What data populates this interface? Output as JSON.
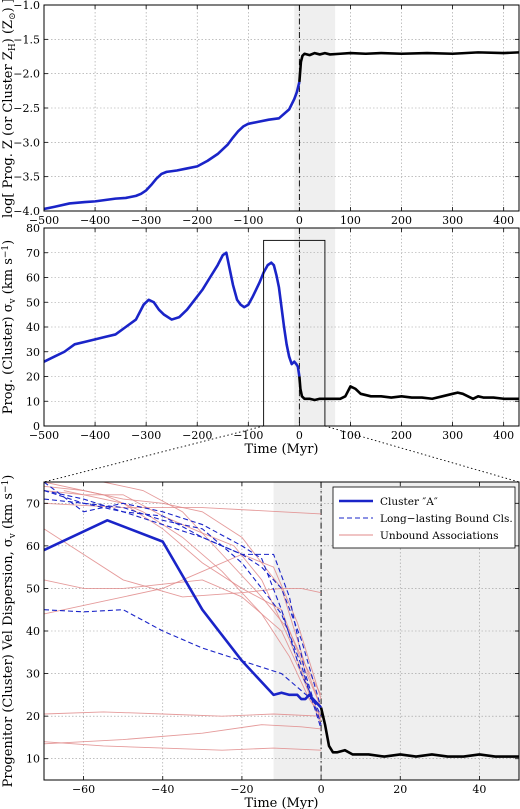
{
  "chart_data": [
    {
      "type": "line",
      "panel": "top",
      "ylabel": "log[ Prog. Z (or Cluster Z",
      "ylabel_sub": "H",
      "ylabel_mid": ") (Z",
      "ylabel_sub2": "⊙",
      "ylabel_end": ") ]",
      "xlim": [
        -500,
        430
      ],
      "ylim": [
        -4.0,
        -1.0
      ],
      "xticks": [
        -500,
        -400,
        -300,
        -200,
        -100,
        0,
        100,
        200,
        300,
        400
      ],
      "yticks": [
        -4.0,
        -3.5,
        -3.0,
        -2.5,
        -2.0,
        -1.5,
        -1.0
      ],
      "ytick_labels": [
        "−4.0",
        "−3.5",
        "−3.0",
        "−2.5",
        "−2.0",
        "−1.5",
        "−1.0"
      ],
      "xtick_labels": [
        "−500",
        "−400",
        "−300",
        "−200",
        "−100",
        "0",
        "100",
        "200",
        "300",
        "400"
      ],
      "grid": true,
      "shade_x": [
        -10,
        70
      ],
      "vline_x": 0,
      "series": [
        {
          "color": "#1a24c8",
          "x": [
            -500,
            -480,
            -450,
            -420,
            -400,
            -380,
            -360,
            -340,
            -320,
            -310,
            -300,
            -290,
            -280,
            -270,
            -260,
            -240,
            -220,
            -200,
            -180,
            -160,
            -140,
            -130,
            -120,
            -110,
            -100,
            -80,
            -60,
            -40,
            -20,
            -10,
            -5,
            0
          ],
          "y": [
            -3.97,
            -3.94,
            -3.89,
            -3.87,
            -3.86,
            -3.84,
            -3.82,
            -3.81,
            -3.78,
            -3.75,
            -3.7,
            -3.62,
            -3.53,
            -3.46,
            -3.43,
            -3.41,
            -3.38,
            -3.35,
            -3.27,
            -3.17,
            -3.03,
            -2.93,
            -2.84,
            -2.77,
            -2.73,
            -2.7,
            -2.67,
            -2.65,
            -2.52,
            -2.37,
            -2.27,
            -2.12
          ]
        },
        {
          "color": "#000000",
          "x": [
            0,
            3,
            6,
            10,
            20,
            30,
            40,
            50,
            60,
            80,
            100,
            130,
            160,
            200,
            250,
            300,
            350,
            400,
            430
          ],
          "y": [
            -2.12,
            -1.83,
            -1.74,
            -1.71,
            -1.73,
            -1.7,
            -1.72,
            -1.7,
            -1.72,
            -1.71,
            -1.7,
            -1.71,
            -1.7,
            -1.71,
            -1.7,
            -1.71,
            -1.69,
            -1.7,
            -1.69
          ]
        }
      ]
    },
    {
      "type": "line",
      "panel": "middle",
      "ylabel": "Prog. (Cluster) σ",
      "ylabel_sub": "v",
      "ylabel_end": " (km s",
      "ylabel_sup": "−1",
      "ylabel_close": ")",
      "xlabel": "Time (Myr)",
      "xlim": [
        -500,
        430
      ],
      "ylim": [
        0,
        80
      ],
      "xticks": [
        -500,
        -400,
        -300,
        -200,
        -100,
        0,
        100,
        200,
        300,
        400
      ],
      "xtick_labels": [
        "−500",
        "−400",
        "−300",
        "−200",
        "−100",
        "0",
        "100",
        "200",
        "300",
        "400"
      ],
      "yticks": [
        0,
        10,
        20,
        30,
        40,
        50,
        60,
        70,
        80
      ],
      "ytick_labels": [
        "0",
        "10",
        "20",
        "30",
        "40",
        "50",
        "60",
        "70",
        "80"
      ],
      "grid": true,
      "shade_x": [
        -10,
        70
      ],
      "vline_x": 0,
      "zoom_box": {
        "x": [
          -70,
          50
        ],
        "y": [
          0,
          75
        ]
      },
      "series": [
        {
          "color": "#1a24c8",
          "x": [
            -500,
            -480,
            -460,
            -440,
            -420,
            -400,
            -380,
            -360,
            -340,
            -320,
            -305,
            -295,
            -285,
            -275,
            -265,
            -250,
            -235,
            -220,
            -205,
            -190,
            -175,
            -160,
            -150,
            -143,
            -137,
            -130,
            -122,
            -115,
            -108,
            -100,
            -92,
            -85,
            -78,
            -70,
            -62,
            -55,
            -50,
            -45,
            -40,
            -35,
            -30,
            -25,
            -20,
            -15,
            -10,
            -6,
            -3,
            0
          ],
          "y": [
            26,
            28,
            30,
            33,
            34,
            35,
            36,
            37,
            40,
            43,
            49,
            51,
            50,
            47,
            45,
            43,
            44,
            47,
            51,
            55,
            60,
            65,
            69,
            70,
            64,
            57,
            51,
            49,
            48,
            49,
            52,
            55,
            58,
            62,
            65,
            66,
            65,
            61,
            56,
            48,
            40,
            33,
            28,
            25,
            26,
            25,
            24,
            20
          ]
        },
        {
          "color": "#000000",
          "x": [
            0,
            2,
            5,
            10,
            20,
            30,
            40,
            50,
            60,
            70,
            80,
            90,
            100,
            110,
            120,
            140,
            160,
            180,
            200,
            220,
            240,
            260,
            280,
            300,
            310,
            320,
            330,
            340,
            350,
            360,
            380,
            400,
            430
          ],
          "y": [
            20,
            15,
            12,
            11,
            11,
            10.5,
            11,
            11,
            11,
            11,
            11,
            12,
            16,
            15,
            13,
            12,
            12,
            11.5,
            12,
            11.5,
            11.5,
            11,
            12,
            13,
            13.5,
            13,
            12,
            11,
            12,
            11.5,
            11.5,
            11,
            11
          ]
        }
      ]
    },
    {
      "type": "line",
      "panel": "zoom",
      "ylabel": "Progenitor (Cluster) Vel Dispersion, σ",
      "ylabel_sub": "v",
      "ylabel_end": " (km s",
      "ylabel_sup": "−1",
      "ylabel_close": ")",
      "xlabel": "Time (Myr)",
      "xlim": [
        -70,
        50
      ],
      "ylim": [
        5,
        75
      ],
      "xticks": [
        -60,
        -40,
        -20,
        0,
        20,
        40
      ],
      "xtick_labels": [
        "−60",
        "−40",
        "−20",
        "0",
        "20",
        "40"
      ],
      "yticks": [
        10,
        20,
        30,
        40,
        50,
        60,
        70
      ],
      "ytick_labels": [
        "10",
        "20",
        "30",
        "40",
        "50",
        "60",
        "70"
      ],
      "grid": true,
      "shade_x": [
        -12,
        50
      ],
      "vline_x": 0,
      "legend": {
        "placement": "top-right",
        "entries": [
          {
            "label": "Cluster ″A″",
            "style": "solid-thick",
            "color": "#1a24c8"
          },
          {
            "label": "Long−lasting Bound Cls.",
            "style": "dashed",
            "color": "#1a24c8"
          },
          {
            "label": "Unbound Associations",
            "style": "solid-thin",
            "color": "#e08a8a"
          }
        ]
      },
      "series": [
        {
          "name": "Cluster ″A″",
          "role": "main",
          "color": "#1a24c8",
          "x": [
            -70,
            -54,
            -40,
            -30,
            -20,
            -12,
            -10,
            -8,
            -6,
            -5,
            -4,
            -3,
            -2,
            -1,
            0
          ],
          "y": [
            59,
            66,
            61,
            45,
            33,
            25,
            25.5,
            25,
            25,
            24,
            24,
            25,
            24,
            23,
            22
          ]
        },
        {
          "role": "main-continuation",
          "color": "#000000",
          "x": [
            0,
            1,
            2,
            3,
            4,
            6,
            8,
            12,
            16,
            20,
            24,
            28,
            32,
            36,
            40,
            44,
            48,
            50
          ],
          "y": [
            22,
            18,
            13,
            11.5,
            11.5,
            12,
            11,
            11,
            10.5,
            11,
            10.5,
            11,
            10.5,
            10.5,
            11,
            10.5,
            10.5,
            10.5
          ]
        }
      ],
      "bound_clusters": [
        {
          "x": [
            -70,
            -60,
            -50,
            -40,
            -30,
            -20,
            -10,
            -5,
            0
          ],
          "y": [
            45,
            44.5,
            45,
            40,
            36,
            33,
            30,
            26,
            22
          ]
        },
        {
          "x": [
            -70,
            -60,
            -50,
            -40,
            -30,
            -20,
            -15,
            -10,
            -5,
            0
          ],
          "y": [
            75,
            68,
            70,
            68,
            65,
            60,
            57,
            45,
            30,
            20
          ]
        },
        {
          "x": [
            -70,
            -60,
            -50,
            -40,
            -30,
            -20,
            -12,
            -8,
            -4,
            0
          ],
          "y": [
            73,
            70,
            68,
            67,
            62,
            58,
            58,
            48,
            30,
            18
          ]
        },
        {
          "x": [
            -70,
            -60,
            -50,
            -40,
            -30,
            -20,
            -10,
            -5,
            0
          ],
          "y": [
            71,
            70,
            69,
            66,
            64,
            56,
            44,
            32,
            17
          ]
        },
        {
          "x": [
            -70,
            -60,
            -50,
            -40,
            -30,
            -20,
            -15,
            -10,
            -5,
            0
          ],
          "y": [
            73,
            71,
            68,
            65,
            62,
            58,
            55,
            50,
            38,
            22
          ]
        }
      ],
      "unbound_associations": [
        {
          "x": [
            -70,
            -55,
            -40,
            -25,
            -12,
            0
          ],
          "y": [
            20.5,
            21,
            20.5,
            20,
            20.5,
            20
          ]
        },
        {
          "x": [
            -70,
            -55,
            -40,
            -25,
            -12,
            0
          ],
          "y": [
            14,
            13,
            12.5,
            12,
            12.5,
            12
          ]
        },
        {
          "x": [
            -70,
            -50,
            -30,
            -15,
            -5,
            0
          ],
          "y": [
            13.5,
            14.5,
            16,
            18,
            17.5,
            17
          ]
        },
        {
          "x": [
            -70,
            -50,
            -30,
            -10,
            0
          ],
          "y": [
            70,
            69,
            69,
            68,
            67.5
          ]
        },
        {
          "x": [
            -70,
            -50,
            -35,
            -20,
            -10,
            -5,
            0
          ],
          "y": [
            64,
            52,
            48,
            49,
            50,
            50,
            49
          ]
        },
        {
          "x": [
            -70,
            -55,
            -40,
            -30,
            -20,
            -12,
            -6,
            -2,
            0
          ],
          "y": [
            44,
            47,
            50,
            54,
            58,
            55,
            42,
            30,
            24
          ]
        },
        {
          "x": [
            -70,
            -55,
            -45,
            -35,
            -25,
            -15,
            -8,
            -3,
            0
          ],
          "y": [
            75,
            72,
            68,
            62,
            54,
            44,
            34,
            24,
            20
          ]
        },
        {
          "x": [
            -70,
            -60,
            -50,
            -40,
            -30,
            -20,
            -10,
            -4,
            0
          ],
          "y": [
            74,
            73,
            71,
            70,
            68,
            62,
            50,
            32,
            22
          ]
        },
        {
          "x": [
            -70,
            -60,
            -50,
            -40,
            -30,
            -22,
            -15,
            -8,
            -3,
            0
          ],
          "y": [
            73,
            72,
            72,
            67,
            63,
            60,
            52,
            38,
            26,
            19
          ]
        },
        {
          "x": [
            -55,
            -45,
            -35,
            -25,
            -15,
            -8,
            -4,
            0
          ],
          "y": [
            75,
            73,
            68,
            58,
            48,
            40,
            32,
            25
          ]
        },
        {
          "x": [
            -65,
            -50,
            -40,
            -30,
            -20,
            -10,
            -5,
            0
          ],
          "y": [
            73,
            70,
            64,
            56,
            50,
            45,
            33,
            22
          ]
        },
        {
          "x": [
            -70,
            -60,
            -50,
            -40,
            -30,
            -20,
            -10,
            -5,
            0
          ],
          "y": [
            52,
            50,
            50,
            51,
            52,
            48,
            40,
            30,
            18
          ]
        }
      ]
    }
  ]
}
